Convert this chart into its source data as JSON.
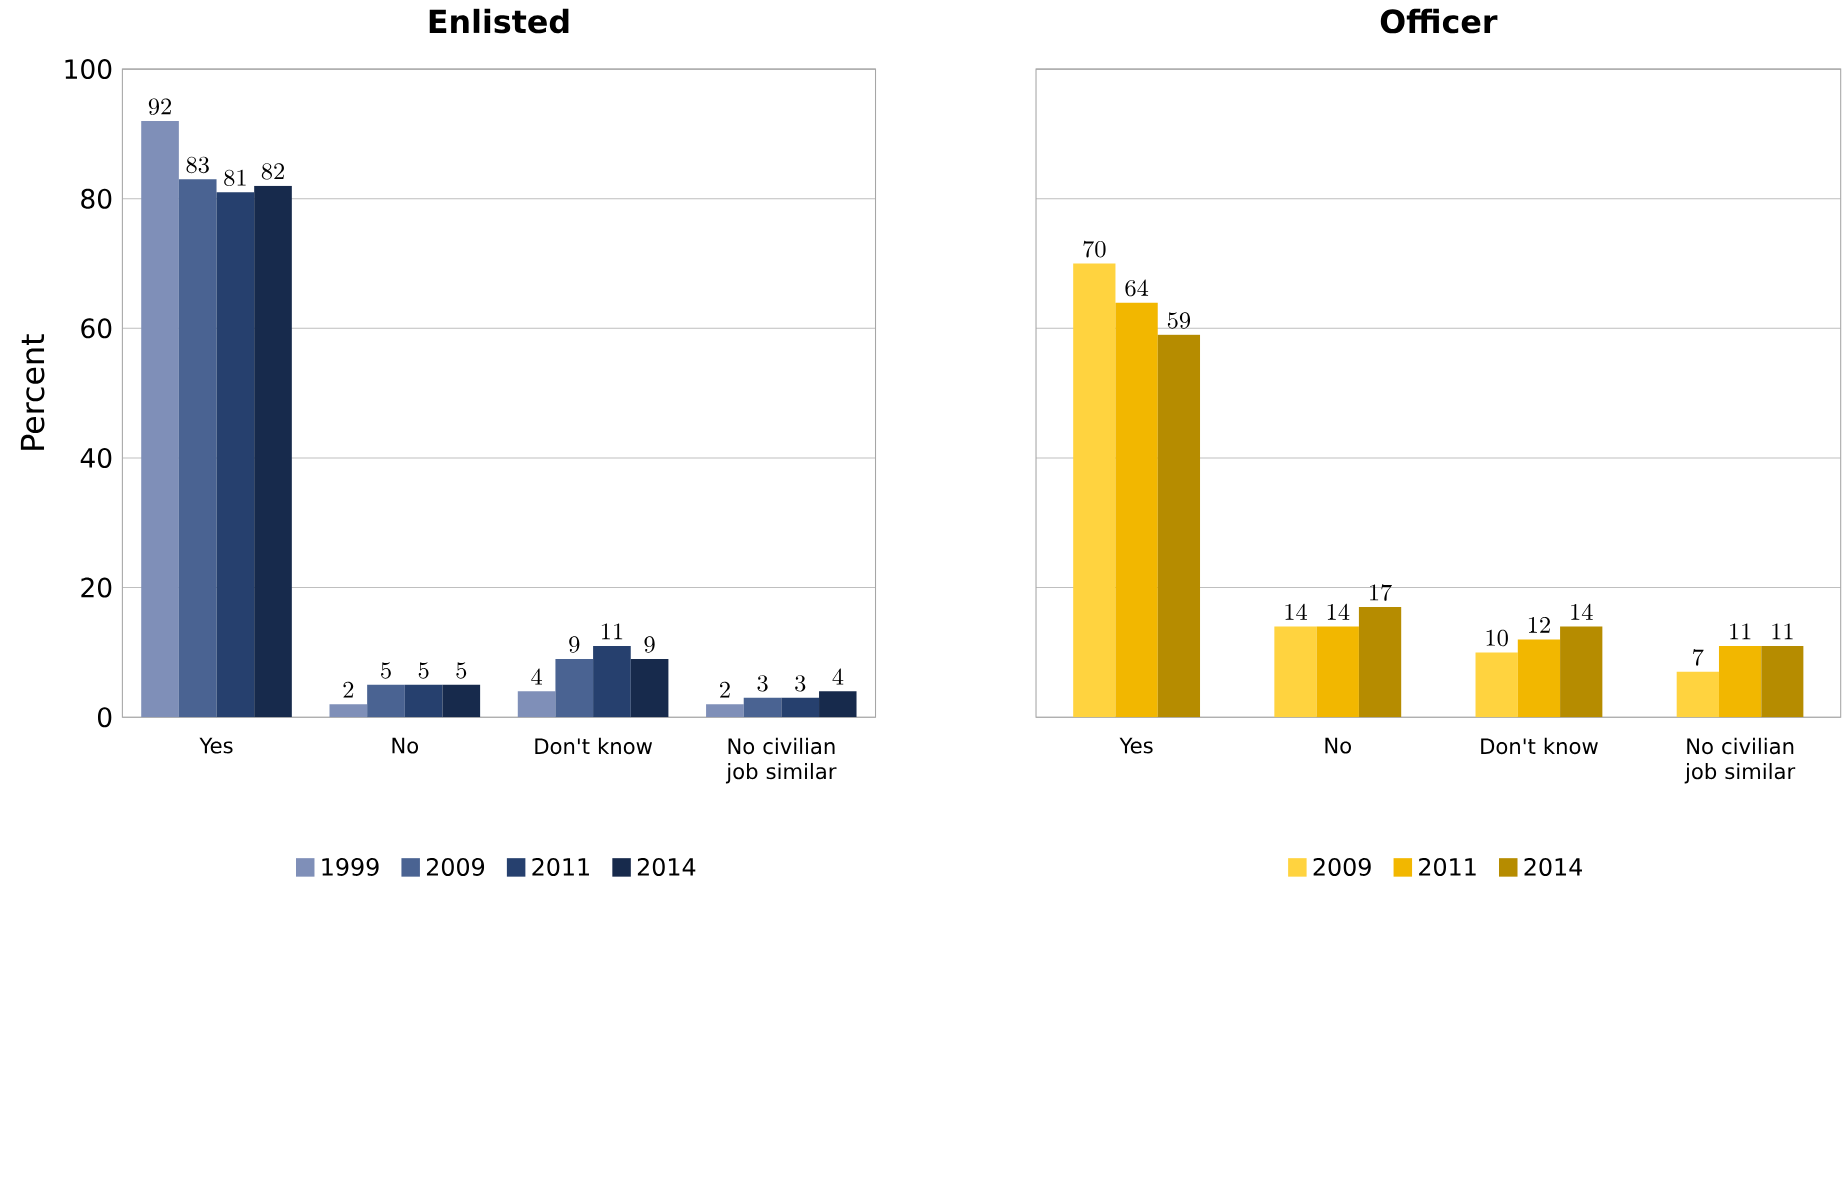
{
  "chart_data": [
    {
      "type": "bar",
      "title": "Enlisted",
      "ylabel": "Percent",
      "categories": [
        "Yes",
        "No",
        "Don't know",
        "No civilian job similar"
      ],
      "series": [
        {
          "name": "1999",
          "color": "#7f8fb8",
          "values": [
            92,
            2,
            4,
            2
          ]
        },
        {
          "name": "2009",
          "color": "#4a6392",
          "values": [
            83,
            5,
            9,
            3
          ]
        },
        {
          "name": "2011",
          "color": "#26406e",
          "values": [
            81,
            5,
            11,
            3
          ]
        },
        {
          "name": "2014",
          "color": "#172a4c",
          "values": [
            82,
            5,
            9,
            4
          ]
        }
      ],
      "ylim": [
        0,
        100
      ],
      "yticks": [
        0,
        20,
        40,
        60,
        80,
        100
      ],
      "grid": "y",
      "legend": "bottom",
      "data_labels": true
    },
    {
      "type": "bar",
      "title": "Officer",
      "categories": [
        "Yes",
        "No",
        "Don't know",
        "No civilian job similar"
      ],
      "series": [
        {
          "name": "2009",
          "color": "#ffd33f",
          "values": [
            70,
            14,
            10,
            7
          ]
        },
        {
          "name": "2011",
          "color": "#f2b700",
          "values": [
            64,
            14,
            12,
            11
          ]
        },
        {
          "name": "2014",
          "color": "#b68c00",
          "values": [
            59,
            17,
            14,
            11
          ]
        }
      ],
      "ylim": [
        0,
        100
      ],
      "yticks": [
        0,
        20,
        40,
        60,
        80,
        100
      ],
      "grid": "y",
      "legend": "bottom",
      "data_labels": true,
      "tick_labels": "x"
    }
  ]
}
